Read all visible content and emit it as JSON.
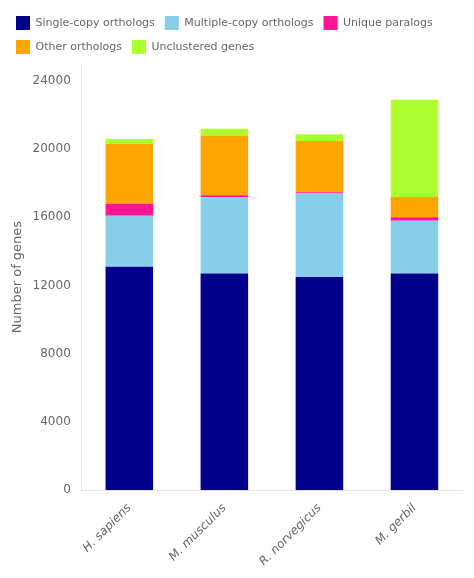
{
  "chart_data": {
    "type": "bar",
    "stacked": true,
    "grid": false,
    "legend": "upper left",
    "ylabel": "Number of genes",
    "categories": [
      "H. sapiens",
      "M. musculus",
      "R. norvegicus",
      "M. gerbil"
    ],
    "series": [
      {
        "name": "Single-copy orthologs",
        "color": "#00008B",
        "values": [
          13100,
          12700,
          12500,
          12700
        ]
      },
      {
        "name": "Multiple-copy orthologs",
        "color": "#87CEEB",
        "values": [
          3000,
          4500,
          4900,
          3100
        ]
      },
      {
        "name": "Unique paralogs",
        "color": "#FF1493",
        "values": [
          700,
          100,
          80,
          200
        ]
      },
      {
        "name": "Other orthologs",
        "color": "#FFA500",
        "values": [
          3500,
          3500,
          3000,
          1200
        ]
      },
      {
        "name": "Unclustered genes",
        "color": "#ADFF2F",
        "values": [
          300,
          400,
          400,
          5700
        ]
      }
    ],
    "ylim": [
      0,
      25000
    ],
    "yticks": [
      0,
      4000,
      8000,
      12000,
      16000,
      20000,
      24000
    ]
  }
}
